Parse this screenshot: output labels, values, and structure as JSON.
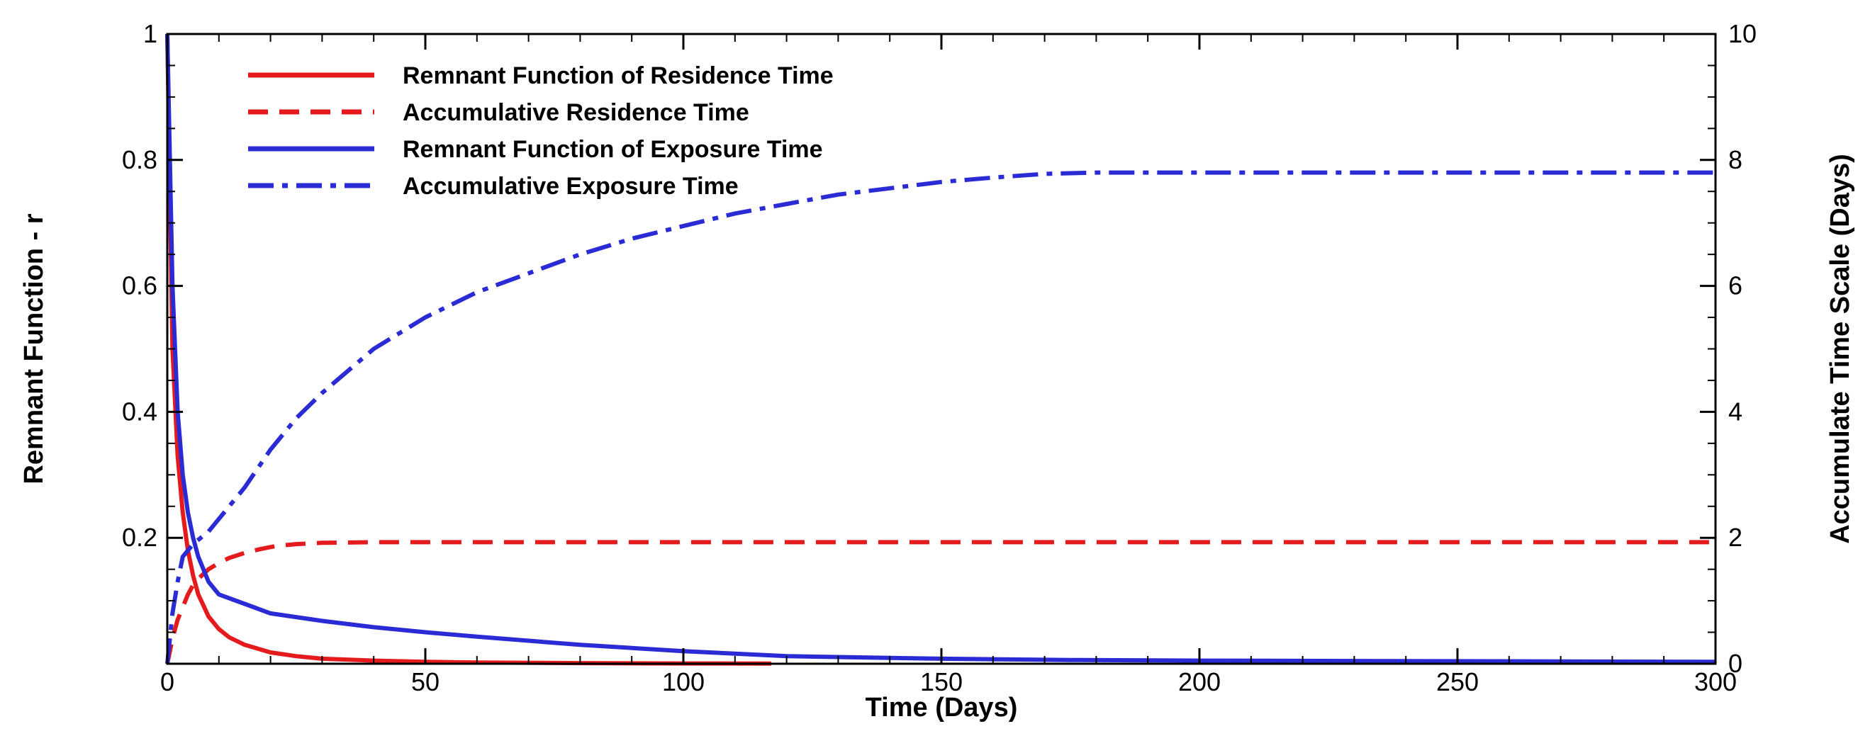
{
  "chart_data": {
    "type": "line",
    "xlabel": "Time (Days)",
    "ylabel_left": "Remnant Function - r",
    "ylabel_right": "Accumulate Time Scale (Days)",
    "xlim": [
      0,
      300
    ],
    "ylim_left": [
      0,
      1
    ],
    "ylim_right": [
      0,
      10
    ],
    "xticks": [
      0,
      50,
      100,
      150,
      200,
      250,
      300
    ],
    "yticks_left": [
      0.2,
      0.4,
      0.6,
      0.8,
      1
    ],
    "yticks_right": [
      0,
      2,
      4,
      6,
      8,
      10
    ],
    "legend_location": "top-left",
    "series": [
      {
        "name": "Remnant Function of Residence Time",
        "axis": "left",
        "color": "#e41a1c",
        "dash": "solid",
        "x": [
          0,
          1,
          2,
          3,
          4,
          5,
          6,
          8,
          10,
          12,
          15,
          20,
          25,
          30,
          40,
          50,
          60,
          80,
          100,
          117
        ],
        "y": [
          1.0,
          0.5,
          0.33,
          0.24,
          0.18,
          0.14,
          0.11,
          0.075,
          0.055,
          0.042,
          0.03,
          0.018,
          0.012,
          0.008,
          0.005,
          0.003,
          0.002,
          0.001,
          0.0005,
          0.0002
        ]
      },
      {
        "name": "Accumulative Residence Time",
        "axis": "right",
        "color": "#e41a1c",
        "dash": "dashed",
        "x": [
          0,
          1,
          2,
          3,
          4,
          5,
          6,
          8,
          10,
          12,
          15,
          18,
          21,
          25,
          30,
          40,
          50,
          100,
          150,
          200,
          250,
          300
        ],
        "y": [
          0,
          0.4,
          0.7,
          0.9,
          1.1,
          1.25,
          1.35,
          1.5,
          1.6,
          1.68,
          1.76,
          1.82,
          1.87,
          1.9,
          1.92,
          1.93,
          1.93,
          1.93,
          1.93,
          1.93,
          1.93,
          1.93
        ]
      },
      {
        "name": "Remnant Function of Exposure Time",
        "axis": "left",
        "color": "#2b2bd6",
        "dash": "solid",
        "x": [
          0,
          1,
          2,
          3,
          4,
          5,
          6,
          8,
          10,
          15,
          20,
          30,
          40,
          50,
          60,
          80,
          100,
          120,
          150,
          175,
          200,
          250,
          300
        ],
        "y": [
          1.0,
          0.6,
          0.4,
          0.3,
          0.24,
          0.2,
          0.17,
          0.13,
          0.11,
          0.095,
          0.08,
          0.068,
          0.058,
          0.05,
          0.043,
          0.03,
          0.02,
          0.012,
          0.008,
          0.006,
          0.005,
          0.004,
          0.003
        ]
      },
      {
        "name": "Accumulative Exposure Time",
        "axis": "right",
        "color": "#2b2bd6",
        "dash": "dashdot",
        "x": [
          0,
          1,
          2,
          3,
          5,
          8,
          10,
          15,
          20,
          25,
          30,
          40,
          50,
          60,
          70,
          80,
          90,
          100,
          110,
          120,
          130,
          140,
          150,
          160,
          170,
          180,
          200,
          250,
          300
        ],
        "y": [
          0,
          0.8,
          1.3,
          1.7,
          1.9,
          2.1,
          2.3,
          2.8,
          3.4,
          3.9,
          4.3,
          5.0,
          5.5,
          5.9,
          6.2,
          6.5,
          6.75,
          6.95,
          7.15,
          7.3,
          7.45,
          7.55,
          7.65,
          7.72,
          7.78,
          7.8,
          7.8,
          7.8,
          7.8
        ]
      }
    ]
  }
}
